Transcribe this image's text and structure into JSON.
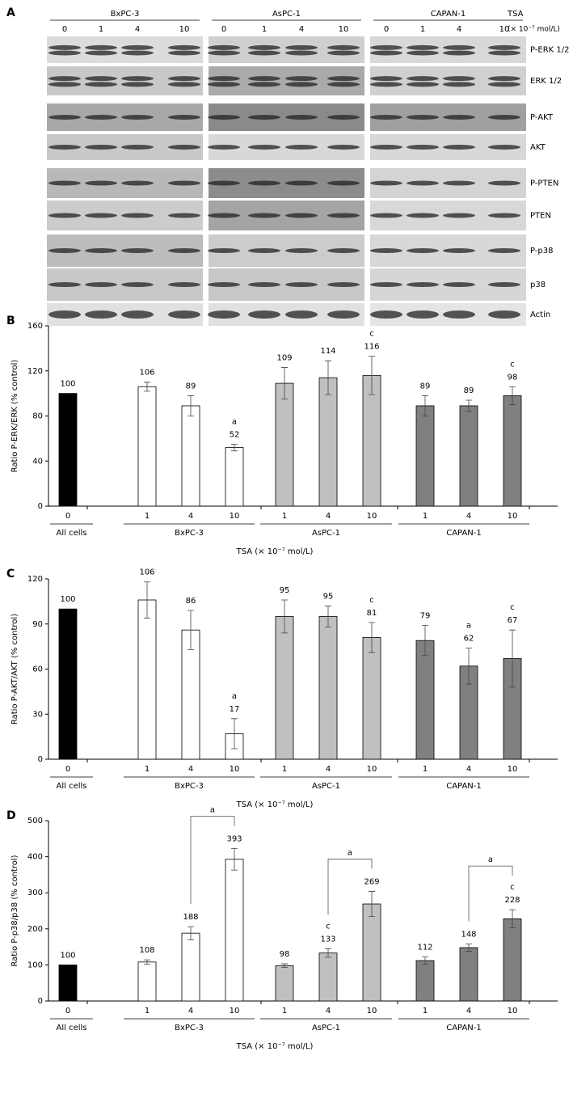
{
  "panel_a": {
    "label": "A",
    "cell_lines": [
      "BxPC-3",
      "AsPC-1",
      "CAPAN-1"
    ],
    "doses": [
      "0",
      "1",
      "4",
      "10"
    ],
    "treatment": "TSA",
    "unit": "(× 10⁻⁷ mol/L)",
    "proteins": [
      "P-ERK 1/2",
      "ERK 1/2",
      "P-AKT",
      "AKT",
      "P-PTEN",
      "PTEN",
      "P-p38",
      "p38",
      "Actin"
    ]
  },
  "chart_data": [
    {
      "type": "bar",
      "panel": "B",
      "ylabel": "Ratio P-ERK/ERK (% control)",
      "xlabel": "TSA (× 10⁻⁷ mol/L)",
      "ylim": [
        0,
        160
      ],
      "yticks": [
        0,
        40,
        80,
        120,
        160
      ],
      "groups": [
        {
          "name": "All cells",
          "color": "#000000",
          "categories": [
            "0"
          ],
          "values": [
            100
          ],
          "errors": [
            null
          ],
          "annotations": [
            null
          ]
        },
        {
          "name": "BxPC-3",
          "color": "#ffffff",
          "categories": [
            "1",
            "4",
            "10"
          ],
          "values": [
            106,
            89,
            52
          ],
          "errors": [
            4,
            9,
            3
          ],
          "annotations": [
            null,
            null,
            "a"
          ]
        },
        {
          "name": "AsPC-1",
          "color": "#c0c0c0",
          "categories": [
            "1",
            "4",
            "10"
          ],
          "values": [
            109,
            114,
            116
          ],
          "errors": [
            14,
            15,
            17
          ],
          "annotations": [
            null,
            null,
            "c"
          ]
        },
        {
          "name": "CAPAN-1",
          "color": "#808080",
          "categories": [
            "1",
            "4",
            "10"
          ],
          "values": [
            89,
            89,
            98
          ],
          "errors": [
            9,
            5,
            8
          ],
          "annotations": [
            null,
            null,
            "c"
          ]
        }
      ]
    },
    {
      "type": "bar",
      "panel": "C",
      "ylabel": "Ratio P-AKT/AKT (% control)",
      "xlabel": "TSA (× 10⁻⁷ mol/L)",
      "ylim": [
        0,
        120
      ],
      "yticks": [
        0,
        30,
        60,
        90,
        120
      ],
      "groups": [
        {
          "name": "All cells",
          "color": "#000000",
          "categories": [
            "0"
          ],
          "values": [
            100
          ],
          "errors": [
            null
          ],
          "annotations": [
            null
          ]
        },
        {
          "name": "BxPC-3",
          "color": "#ffffff",
          "categories": [
            "1",
            "4",
            "10"
          ],
          "values": [
            106,
            86,
            17
          ],
          "errors": [
            12,
            13,
            10
          ],
          "annotations": [
            null,
            null,
            "a"
          ]
        },
        {
          "name": "AsPC-1",
          "color": "#c0c0c0",
          "categories": [
            "1",
            "4",
            "10"
          ],
          "values": [
            95,
            95,
            81
          ],
          "errors": [
            11,
            7,
            10
          ],
          "annotations": [
            null,
            null,
            "c"
          ]
        },
        {
          "name": "CAPAN-1",
          "color": "#808080",
          "categories": [
            "1",
            "4",
            "10"
          ],
          "values": [
            79,
            62,
            67
          ],
          "errors": [
            10,
            12,
            19
          ],
          "annotations": [
            null,
            "a",
            "c"
          ]
        }
      ]
    },
    {
      "type": "bar",
      "panel": "D",
      "ylabel": "Ratio P-p38/p38 (% control)",
      "xlabel": "TSA (× 10⁻⁷ mol/L)",
      "ylim": [
        0,
        500
      ],
      "yticks": [
        0,
        100,
        200,
        300,
        400,
        500
      ],
      "groups": [
        {
          "name": "All cells",
          "color": "#000000",
          "categories": [
            "0"
          ],
          "values": [
            100
          ],
          "errors": [
            null
          ],
          "annotations": [
            null
          ]
        },
        {
          "name": "BxPC-3",
          "color": "#ffffff",
          "categories": [
            "1",
            "4",
            "10"
          ],
          "values": [
            108,
            188,
            393
          ],
          "errors": [
            6,
            18,
            30
          ],
          "annotations": [
            null,
            null,
            null
          ],
          "bracket": {
            "label": "a",
            "between": [
              "4",
              "10"
            ]
          }
        },
        {
          "name": "AsPC-1",
          "color": "#c0c0c0",
          "categories": [
            "1",
            "4",
            "10"
          ],
          "values": [
            98,
            133,
            269
          ],
          "errors": [
            5,
            12,
            35
          ],
          "annotations": [
            null,
            "c",
            null
          ],
          "bracket": {
            "label": "a",
            "between": [
              "4",
              "10"
            ]
          }
        },
        {
          "name": "CAPAN-1",
          "color": "#808080",
          "categories": [
            "1",
            "4",
            "10"
          ],
          "values": [
            112,
            148,
            228
          ],
          "errors": [
            10,
            10,
            25
          ],
          "annotations": [
            null,
            null,
            "c"
          ],
          "bracket": {
            "label": "a",
            "between": [
              "4",
              "10"
            ]
          }
        }
      ]
    }
  ]
}
